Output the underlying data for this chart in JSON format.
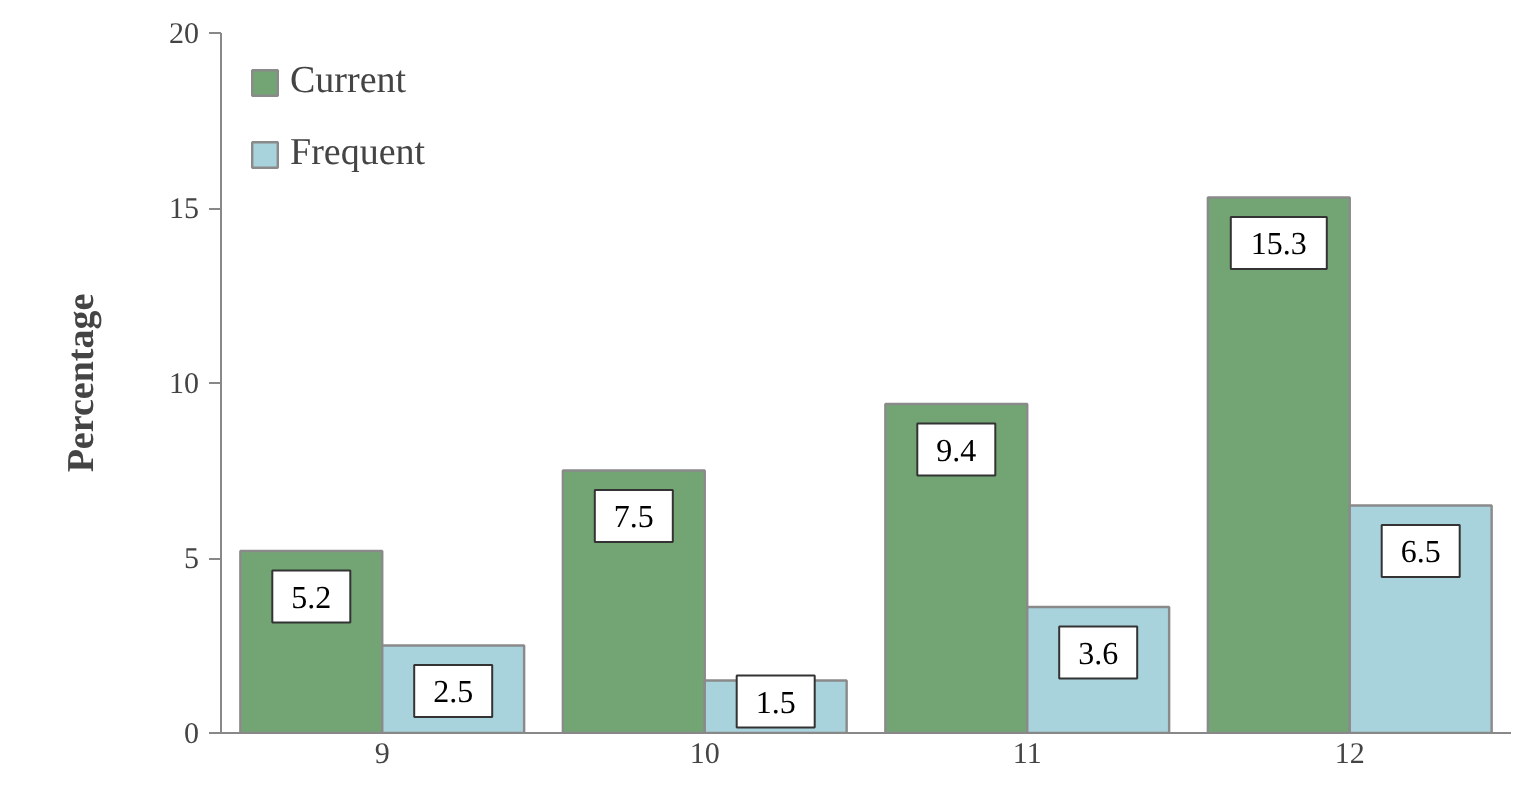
{
  "chart_data": {
    "type": "bar",
    "ylabel": "Percentage",
    "categories": [
      "9",
      "10",
      "11",
      "12"
    ],
    "series": [
      {
        "name": "Current",
        "color": "#73a574",
        "values": [
          5.2,
          7.5,
          9.4,
          15.3
        ]
      },
      {
        "name": "Frequent",
        "color": "#a8d2dc",
        "values": [
          2.5,
          1.5,
          3.6,
          6.5
        ]
      }
    ],
    "ylim": [
      0,
      20
    ],
    "yticks": [
      0,
      5,
      10,
      15,
      20
    ],
    "grid": false,
    "legend": "top left",
    "data_labels": true
  }
}
